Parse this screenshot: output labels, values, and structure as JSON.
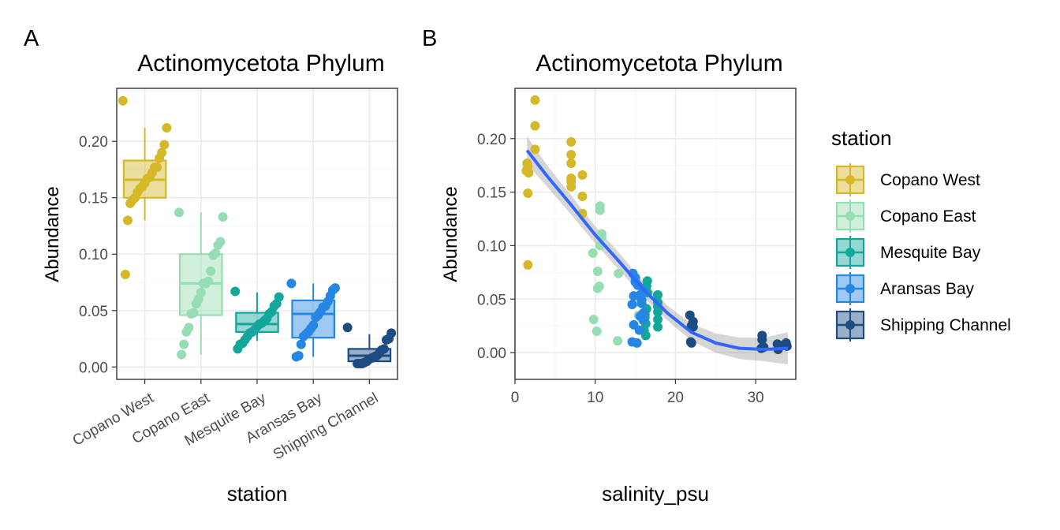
{
  "stations": [
    {
      "name": "Copano West",
      "color": "#D4B828"
    },
    {
      "name": "Copano East",
      "color": "#97DDB4"
    },
    {
      "name": "Mesquite Bay",
      "color": "#13A79C"
    },
    {
      "name": "Aransas Bay",
      "color": "#2587E3"
    },
    {
      "name": "Shipping Channel",
      "color": "#1D4C82"
    }
  ],
  "chart_data": [
    {
      "panel_tag": "A",
      "type": "box",
      "title": "Actinomycetota Phylum",
      "xlabel": "station",
      "ylabel": "Abundance",
      "ylim": [
        -0.011,
        0.247
      ],
      "yticks": [
        0.0,
        0.05,
        0.1,
        0.15,
        0.2
      ],
      "ytick_labels": [
        "0.00",
        "0.05",
        "0.10",
        "0.15",
        "0.20"
      ],
      "categories": [
        "Copano West",
        "Copano East",
        "Mesquite Bay",
        "Aransas Bay",
        "Shipping Channel"
      ],
      "boxes": [
        {
          "station": "Copano West",
          "min": 0.13,
          "q1": 0.15,
          "median": 0.166,
          "q3": 0.183,
          "max": 0.212
        },
        {
          "station": "Copano East",
          "min": 0.011,
          "q1": 0.046,
          "median": 0.074,
          "q3": 0.1,
          "max": 0.137
        },
        {
          "station": "Mesquite Bay",
          "min": 0.023,
          "q1": 0.031,
          "median": 0.038,
          "q3": 0.048,
          "max": 0.066
        },
        {
          "station": "Aransas Bay",
          "min": 0.009,
          "q1": 0.026,
          "median": 0.047,
          "q3": 0.059,
          "max": 0.074
        },
        {
          "station": "Shipping Channel",
          "min": 0.003,
          "q1": 0.005,
          "median": 0.01,
          "q3": 0.016,
          "max": 0.029
        }
      ],
      "points": [
        {
          "station": "Copano West",
          "values": [
            0.236,
            0.212,
            0.197,
            0.19,
            0.185,
            0.177,
            0.177,
            0.172,
            0.168,
            0.167,
            0.163,
            0.16,
            0.158,
            0.155,
            0.15,
            0.148,
            0.145,
            0.13,
            0.082
          ]
        },
        {
          "station": "Copano East",
          "values": [
            0.137,
            0.133,
            0.111,
            0.108,
            0.101,
            0.099,
            0.085,
            0.076,
            0.074,
            0.074,
            0.066,
            0.06,
            0.056,
            0.048,
            0.047,
            0.035,
            0.031,
            0.02,
            0.011
          ]
        },
        {
          "station": "Mesquite Bay",
          "values": [
            0.067,
            0.062,
            0.056,
            0.054,
            0.049,
            0.047,
            0.043,
            0.041,
            0.039,
            0.038,
            0.036,
            0.033,
            0.031,
            0.03,
            0.027,
            0.024,
            0.021,
            0.02,
            0.016
          ]
        },
        {
          "station": "Aransas Bay",
          "values": [
            0.074,
            0.07,
            0.068,
            0.063,
            0.058,
            0.054,
            0.053,
            0.049,
            0.046,
            0.044,
            0.037,
            0.034,
            0.031,
            0.029,
            0.027,
            0.02,
            0.01,
            0.009
          ]
        },
        {
          "station": "Shipping Channel",
          "values": [
            0.035,
            0.03,
            0.025,
            0.024,
            0.016,
            0.015,
            0.012,
            0.01,
            0.009,
            0.008,
            0.007,
            0.005,
            0.004,
            0.003,
            0.003,
            0.003
          ]
        }
      ]
    },
    {
      "panel_tag": "B",
      "type": "scatter",
      "title": "Actinomycetota Phylum",
      "xlabel": "salinity_psu",
      "ylabel": "Abundance",
      "xlim": [
        0,
        35
      ],
      "ylim": [
        -0.025,
        0.247
      ],
      "xticks": [
        0,
        10,
        20,
        30
      ],
      "xtick_labels": [
        "0",
        "10",
        "20",
        "30"
      ],
      "yticks": [
        0.0,
        0.05,
        0.1,
        0.15,
        0.2
      ],
      "ytick_labels": [
        "0.00",
        "0.05",
        "0.10",
        "0.15",
        "0.20"
      ],
      "series": [
        {
          "name": "Copano West",
          "points": [
            [
              2.5,
              0.236
            ],
            [
              2.5,
              0.212
            ],
            [
              2.5,
              0.19
            ],
            [
              1.5,
              0.177
            ],
            [
              1.6,
              0.174
            ],
            [
              1.4,
              0.17
            ],
            [
              1.7,
              0.168
            ],
            [
              1.6,
              0.149
            ],
            [
              1.6,
              0.082
            ],
            [
              7.0,
              0.197
            ],
            [
              7.0,
              0.185
            ],
            [
              7.0,
              0.177
            ],
            [
              7.0,
              0.163
            ],
            [
              7.0,
              0.16
            ],
            [
              7.0,
              0.155
            ],
            [
              8.4,
              0.166
            ],
            [
              8.4,
              0.146
            ],
            [
              8.4,
              0.13
            ]
          ]
        },
        {
          "name": "Copano East",
          "points": [
            [
              10.6,
              0.137
            ],
            [
              10.6,
              0.133
            ],
            [
              10.8,
              0.111
            ],
            [
              10.8,
              0.108
            ],
            [
              10.6,
              0.1
            ],
            [
              9.7,
              0.093
            ],
            [
              10.3,
              0.076
            ],
            [
              10.5,
              0.062
            ],
            [
              10.3,
              0.06
            ],
            [
              9.8,
              0.031
            ],
            [
              10.2,
              0.02
            ],
            [
              12.8,
              0.011
            ],
            [
              15.4,
              0.035
            ],
            [
              15.0,
              0.047
            ],
            [
              12.9,
              0.074
            ]
          ]
        },
        {
          "name": "Mesquite Bay",
          "points": [
            [
              16.5,
              0.067
            ],
            [
              16.4,
              0.062
            ],
            [
              16.5,
              0.056
            ],
            [
              17.8,
              0.054
            ],
            [
              17.8,
              0.047
            ],
            [
              17.8,
              0.043
            ],
            [
              16.4,
              0.041
            ],
            [
              17.8,
              0.038
            ],
            [
              16.2,
              0.036
            ],
            [
              16.2,
              0.033
            ],
            [
              17.8,
              0.031
            ],
            [
              16.0,
              0.03
            ],
            [
              16.3,
              0.027
            ],
            [
              17.8,
              0.024
            ],
            [
              16.1,
              0.021
            ],
            [
              16.3,
              0.016
            ]
          ]
        },
        {
          "name": "Aransas Bay",
          "points": [
            [
              14.7,
              0.074
            ],
            [
              15.0,
              0.07
            ],
            [
              15.0,
              0.066
            ],
            [
              15.3,
              0.063
            ],
            [
              16.0,
              0.058
            ],
            [
              15.6,
              0.054
            ],
            [
              14.8,
              0.053
            ],
            [
              15.8,
              0.049
            ],
            [
              15.8,
              0.046
            ],
            [
              14.6,
              0.045
            ],
            [
              16.0,
              0.037
            ],
            [
              15.6,
              0.034
            ],
            [
              16.0,
              0.031
            ],
            [
              14.8,
              0.026
            ],
            [
              15.5,
              0.021
            ],
            [
              14.6,
              0.01
            ],
            [
              15.2,
              0.009
            ]
          ]
        },
        {
          "name": "Shipping Channel",
          "points": [
            [
              21.8,
              0.035
            ],
            [
              22.2,
              0.029
            ],
            [
              22.0,
              0.025
            ],
            [
              22.2,
              0.024
            ],
            [
              21.9,
              0.01
            ],
            [
              22.0,
              0.009
            ],
            [
              30.8,
              0.016
            ],
            [
              30.8,
              0.012
            ],
            [
              31.0,
              0.005
            ],
            [
              30.7,
              0.004
            ],
            [
              32.7,
              0.008
            ],
            [
              32.8,
              0.003
            ],
            [
              33.8,
              0.009
            ],
            [
              33.9,
              0.006
            ],
            [
              33.5,
              0.007
            ]
          ]
        }
      ],
      "smooth": {
        "method": "loess",
        "color": "#3366FF",
        "band_color": "#999999",
        "line": [
          [
            1.5,
            0.189
          ],
          [
            4,
            0.165
          ],
          [
            7,
            0.138
          ],
          [
            10,
            0.11
          ],
          [
            13,
            0.085
          ],
          [
            16,
            0.059
          ],
          [
            19,
            0.037
          ],
          [
            22,
            0.019
          ],
          [
            25,
            0.009
          ],
          [
            28,
            0.004
          ],
          [
            31,
            0.003
          ],
          [
            34,
            0.004
          ]
        ],
        "band_half_width": [
          0.013,
          0.01,
          0.009,
          0.008,
          0.008,
          0.007,
          0.007,
          0.008,
          0.009,
          0.01,
          0.011,
          0.015
        ]
      }
    }
  ],
  "legend": {
    "title": "station",
    "items": [
      "Copano West",
      "Copano East",
      "Mesquite Bay",
      "Aransas Bay",
      "Shipping Channel"
    ]
  }
}
